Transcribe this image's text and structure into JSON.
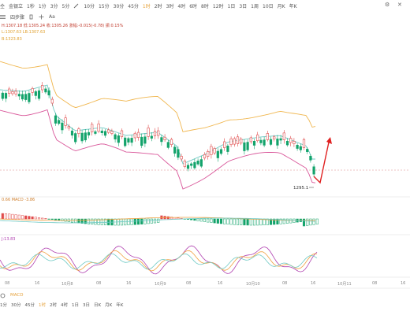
{
  "toolbar": {
    "items": [
      {
        "label": "1秒",
        "active": false
      },
      {
        "label": "1分",
        "active": false
      },
      {
        "label": "3分",
        "active": false
      },
      {
        "label": "5分",
        "active": false
      },
      {
        "label": "10分",
        "active": false
      },
      {
        "label": "15分",
        "active": false
      },
      {
        "label": "30分",
        "active": false
      },
      {
        "label": "45分",
        "active": false
      },
      {
        "label": "1时",
        "active": true
      },
      {
        "label": "2时",
        "active": false
      },
      {
        "label": "3时",
        "active": false
      },
      {
        "label": "4时",
        "active": false
      },
      {
        "label": "6时",
        "active": false
      },
      {
        "label": "8时",
        "active": false
      },
      {
        "label": "12时",
        "active": false
      },
      {
        "label": "1日",
        "active": false
      },
      {
        "label": "3日",
        "active": false
      },
      {
        "label": "1周",
        "active": false
      },
      {
        "label": "10日",
        "active": false
      },
      {
        "label": "月K",
        "active": false
      },
      {
        "label": "年K",
        "active": false
      }
    ],
    "left_labels": {
      "t1": "仝",
      "t2": "金银立",
      "t3": "设"
    }
  },
  "toolbar2": {
    "label1": "四步骤",
    "label2": "Aa"
  },
  "legend": {
    "ohlc": "H:1307.18  低:1305.24  收:1305.26  涨幅:-0.015(-0.78)  振:0.15%",
    "ma": "L:1307.63  LB:1307.63",
    "boll_line": "B:1323.83"
  },
  "macd_label": "0.66  MACD -3.86",
  "kdj_label": "J:13.83",
  "price_tag": "1295.1",
  "x_axis": [
    {
      "label": "08",
      "x": 6
    },
    {
      "label": "16",
      "x": 44
    },
    {
      "label": "10月8",
      "x": 78
    },
    {
      "label": "08",
      "x": 122
    },
    {
      "label": "16",
      "x": 160
    },
    {
      "label": "10月9",
      "x": 196
    },
    {
      "label": "08",
      "x": 236
    },
    {
      "label": "16",
      "x": 276
    },
    {
      "label": "10月10",
      "x": 312
    },
    {
      "label": "08",
      "x": 358
    },
    {
      "label": "16",
      "x": 394
    },
    {
      "label": "10月11",
      "x": 428
    },
    {
      "label": "08",
      "x": 472
    },
    {
      "label": "16",
      "x": 508
    }
  ],
  "bottom_toolbar": {
    "items": [
      {
        "label": "1分",
        "active": false
      },
      {
        "label": "30分",
        "active": false
      },
      {
        "label": "45分",
        "active": false
      },
      {
        "label": "1时",
        "active": true
      },
      {
        "label": "2时",
        "active": false
      },
      {
        "label": "4时",
        "active": false
      },
      {
        "label": "1日",
        "active": false
      },
      {
        "label": "3日",
        "active": false
      },
      {
        "label": "日K",
        "active": false
      },
      {
        "label": "月K",
        "active": false
      },
      {
        "label": "年K",
        "active": false
      }
    ],
    "macd": "MACD"
  },
  "colors": {
    "up": "#e04b4b",
    "down": "#13a36b",
    "boll_upper": "#f0b64e",
    "boll_mid": "#6ec9c4",
    "boll_lower": "#d9579a",
    "arrow": "#e02020"
  }
}
